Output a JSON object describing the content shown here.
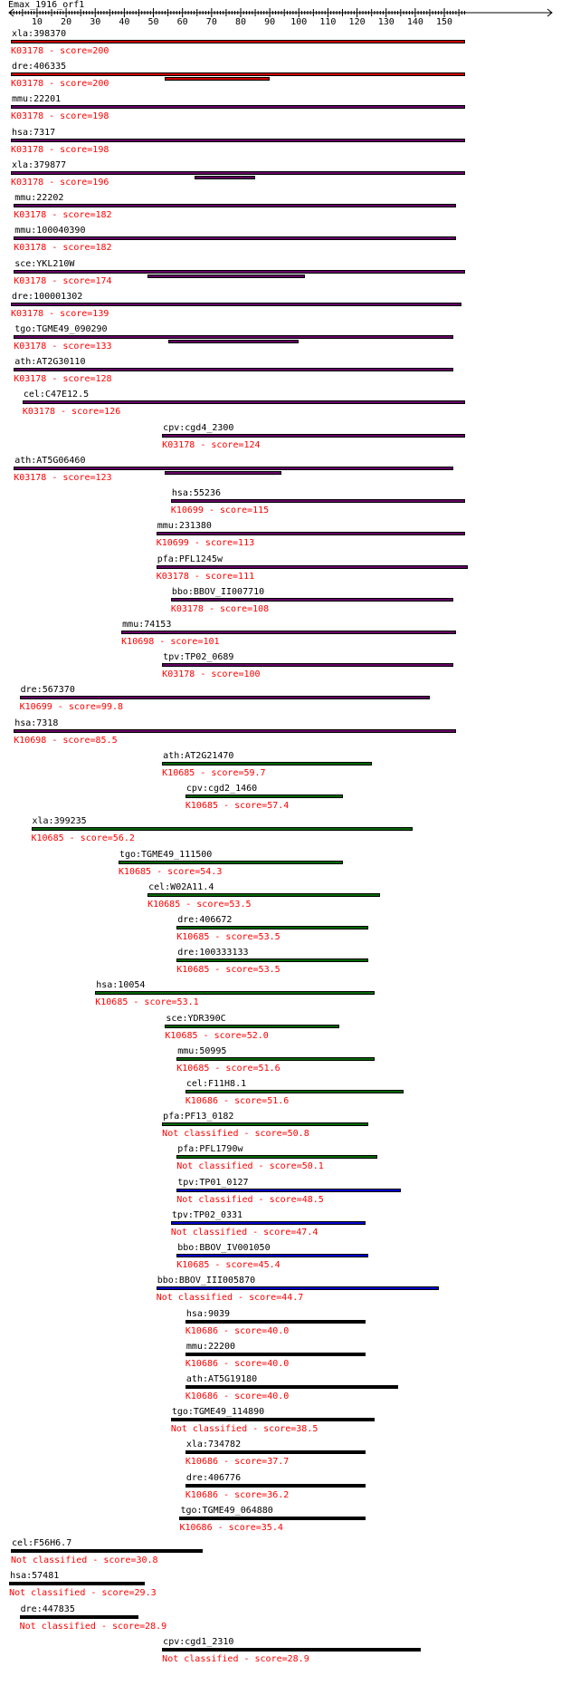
{
  "title": "Emax_1916_orf1",
  "ruler": {
    "min": 1,
    "max": 157,
    "labels": [
      10,
      20,
      30,
      40,
      50,
      60,
      70,
      80,
      90,
      100,
      110,
      120,
      130,
      140,
      150
    ]
  },
  "colors": {
    "red": "#cc0000",
    "purple": "#660066",
    "green": "#006600",
    "blue": "#0000cc",
    "black": "#000000",
    "label_red": "#ff0000"
  },
  "hits": [
    {
      "gene": "xla:398370",
      "label": "K03178 - score=200",
      "start": 1,
      "end": 157,
      "color": "red"
    },
    {
      "gene": "dre:406335",
      "label": "K03178 - score=200",
      "start": 1,
      "end": 157,
      "color": "red",
      "sub": [
        54,
        90
      ]
    },
    {
      "gene": "mmu:22201",
      "label": "K03178 - score=198",
      "start": 1,
      "end": 157,
      "color": "purple"
    },
    {
      "gene": "hsa:7317",
      "label": "K03178 - score=198",
      "start": 1,
      "end": 157,
      "color": "purple"
    },
    {
      "gene": "xla:379877",
      "label": "K03178 - score=196",
      "start": 1,
      "end": 157,
      "color": "purple",
      "sub": [
        64,
        85
      ]
    },
    {
      "gene": "mmu:22202",
      "label": "K03178 - score=182",
      "start": 2,
      "end": 154,
      "color": "purple"
    },
    {
      "gene": "mmu:100040390",
      "label": "K03178 - score=182",
      "start": 2,
      "end": 154,
      "color": "purple"
    },
    {
      "gene": "sce:YKL210W",
      "label": "K03178 - score=174",
      "start": 2,
      "end": 157,
      "color": "purple",
      "sub": [
        48,
        102
      ]
    },
    {
      "gene": "dre:100001302",
      "label": "K03178 - score=139",
      "start": 1,
      "end": 156,
      "color": "purple"
    },
    {
      "gene": "tgo:TGME49_090290",
      "label": "K03178 - score=133",
      "start": 2,
      "end": 153,
      "color": "purple",
      "sub": [
        55,
        100
      ]
    },
    {
      "gene": "ath:AT2G30110",
      "label": "K03178 - score=128",
      "start": 2,
      "end": 153,
      "color": "purple"
    },
    {
      "gene": "cel:C47E12.5",
      "label": "K03178 - score=126",
      "start": 5,
      "end": 157,
      "color": "purple"
    },
    {
      "gene": "cpv:cgd4_2300",
      "label": "K03178 - score=124",
      "start": 53,
      "end": 157,
      "color": "purple"
    },
    {
      "gene": "ath:AT5G06460",
      "label": "K03178 - score=123",
      "start": 2,
      "end": 153,
      "color": "purple",
      "sub": [
        54,
        94
      ]
    },
    {
      "gene": "hsa:55236",
      "label": "K10699 - score=115",
      "start": 56,
      "end": 157,
      "color": "purple"
    },
    {
      "gene": "mmu:231380",
      "label": "K10699 - score=113",
      "start": 51,
      "end": 157,
      "color": "purple"
    },
    {
      "gene": "pfa:PFL1245w",
      "label": "K03178 - score=111",
      "start": 51,
      "end": 158,
      "color": "purple"
    },
    {
      "gene": "bbo:BBOV_II007710",
      "label": "K03178 - score=108",
      "start": 56,
      "end": 153,
      "color": "purple"
    },
    {
      "gene": "mmu:74153",
      "label": "K10698 - score=101",
      "start": 39,
      "end": 154,
      "color": "purple"
    },
    {
      "gene": "tpv:TP02_0689",
      "label": "K03178 - score=100",
      "start": 53,
      "end": 153,
      "color": "purple"
    },
    {
      "gene": "dre:567370",
      "label": "K10699 - score=99.8",
      "start": 4,
      "end": 145,
      "color": "purple"
    },
    {
      "gene": "hsa:7318",
      "label": "K10698 - score=85.5",
      "start": 2,
      "end": 154,
      "color": "purple"
    },
    {
      "gene": "ath:AT2G21470",
      "label": "K10685 - score=59.7",
      "start": 53,
      "end": 125,
      "color": "green"
    },
    {
      "gene": "cpv:cgd2_1460",
      "label": "K10685 - score=57.4",
      "start": 61,
      "end": 115,
      "color": "green"
    },
    {
      "gene": "xla:399235",
      "label": "K10685 - score=56.2",
      "start": 8,
      "end": 139,
      "color": "green"
    },
    {
      "gene": "tgo:TGME49_111500",
      "label": "K10685 - score=54.3",
      "start": 38,
      "end": 115,
      "color": "green"
    },
    {
      "gene": "cel:W02A11.4",
      "label": "K10685 - score=53.5",
      "start": 48,
      "end": 128,
      "color": "green"
    },
    {
      "gene": "dre:406672",
      "label": "K10685 - score=53.5",
      "start": 58,
      "end": 124,
      "color": "green"
    },
    {
      "gene": "dre:100333133",
      "label": "K10685 - score=53.5",
      "start": 58,
      "end": 124,
      "color": "green"
    },
    {
      "gene": "hsa:10054",
      "label": "K10685 - score=53.1",
      "start": 30,
      "end": 126,
      "color": "green"
    },
    {
      "gene": "sce:YDR390C",
      "label": "K10685 - score=52.0",
      "start": 54,
      "end": 114,
      "color": "green"
    },
    {
      "gene": "mmu:50995",
      "label": "K10685 - score=51.6",
      "start": 58,
      "end": 126,
      "color": "green"
    },
    {
      "gene": "cel:F11H8.1",
      "label": "K10686 - score=51.6",
      "start": 61,
      "end": 136,
      "color": "green"
    },
    {
      "gene": "pfa:PF13_0182",
      "label": "Not classified - score=50.8",
      "start": 53,
      "end": 124,
      "color": "green"
    },
    {
      "gene": "pfa:PFL1790w",
      "label": "Not classified - score=50.1",
      "start": 58,
      "end": 127,
      "color": "green"
    },
    {
      "gene": "tpv:TP01_0127",
      "label": "Not classified - score=48.5",
      "start": 58,
      "end": 135,
      "color": "blue"
    },
    {
      "gene": "tpv:TP02_0331",
      "label": "Not classified - score=47.4",
      "start": 56,
      "end": 123,
      "color": "blue"
    },
    {
      "gene": "bbo:BBOV_IV001050",
      "label": "K10685 - score=45.4",
      "start": 58,
      "end": 124,
      "color": "blue"
    },
    {
      "gene": "bbo:BBOV_III005870",
      "label": "Not classified - score=44.7",
      "start": 51,
      "end": 148,
      "color": "blue"
    },
    {
      "gene": "hsa:9039",
      "label": "K10686 - score=40.0",
      "start": 61,
      "end": 123,
      "color": "black"
    },
    {
      "gene": "mmu:22200",
      "label": "K10686 - score=40.0",
      "start": 61,
      "end": 123,
      "color": "black"
    },
    {
      "gene": "ath:AT5G19180",
      "label": "K10686 - score=40.0",
      "start": 61,
      "end": 134,
      "color": "black"
    },
    {
      "gene": "tgo:TGME49_114890",
      "label": "Not classified - score=38.5",
      "start": 56,
      "end": 126,
      "color": "black"
    },
    {
      "gene": "xla:734782",
      "label": "K10686 - score=37.7",
      "start": 61,
      "end": 123,
      "color": "black"
    },
    {
      "gene": "dre:406776",
      "label": "K10686 - score=36.2",
      "start": 61,
      "end": 123,
      "color": "black"
    },
    {
      "gene": "tgo:TGME49_064880",
      "label": "K10686 - score=35.4",
      "start": 59,
      "end": 123,
      "color": "black"
    },
    {
      "gene": "cel:F56H6.7",
      "label": "Not classified - score=30.8",
      "start": 1,
      "end": 67,
      "color": "black"
    },
    {
      "gene": "hsa:57481",
      "label": "Not classified - score=29.3",
      "start": 0,
      "end": 47,
      "color": "black"
    },
    {
      "gene": "dre:447835",
      "label": "Not classified - score=28.9",
      "start": 4,
      "end": 45,
      "color": "black"
    },
    {
      "gene": "cpv:cgd1_2310",
      "label": "Not classified - score=28.9",
      "start": 53,
      "end": 142,
      "color": "black"
    }
  ]
}
